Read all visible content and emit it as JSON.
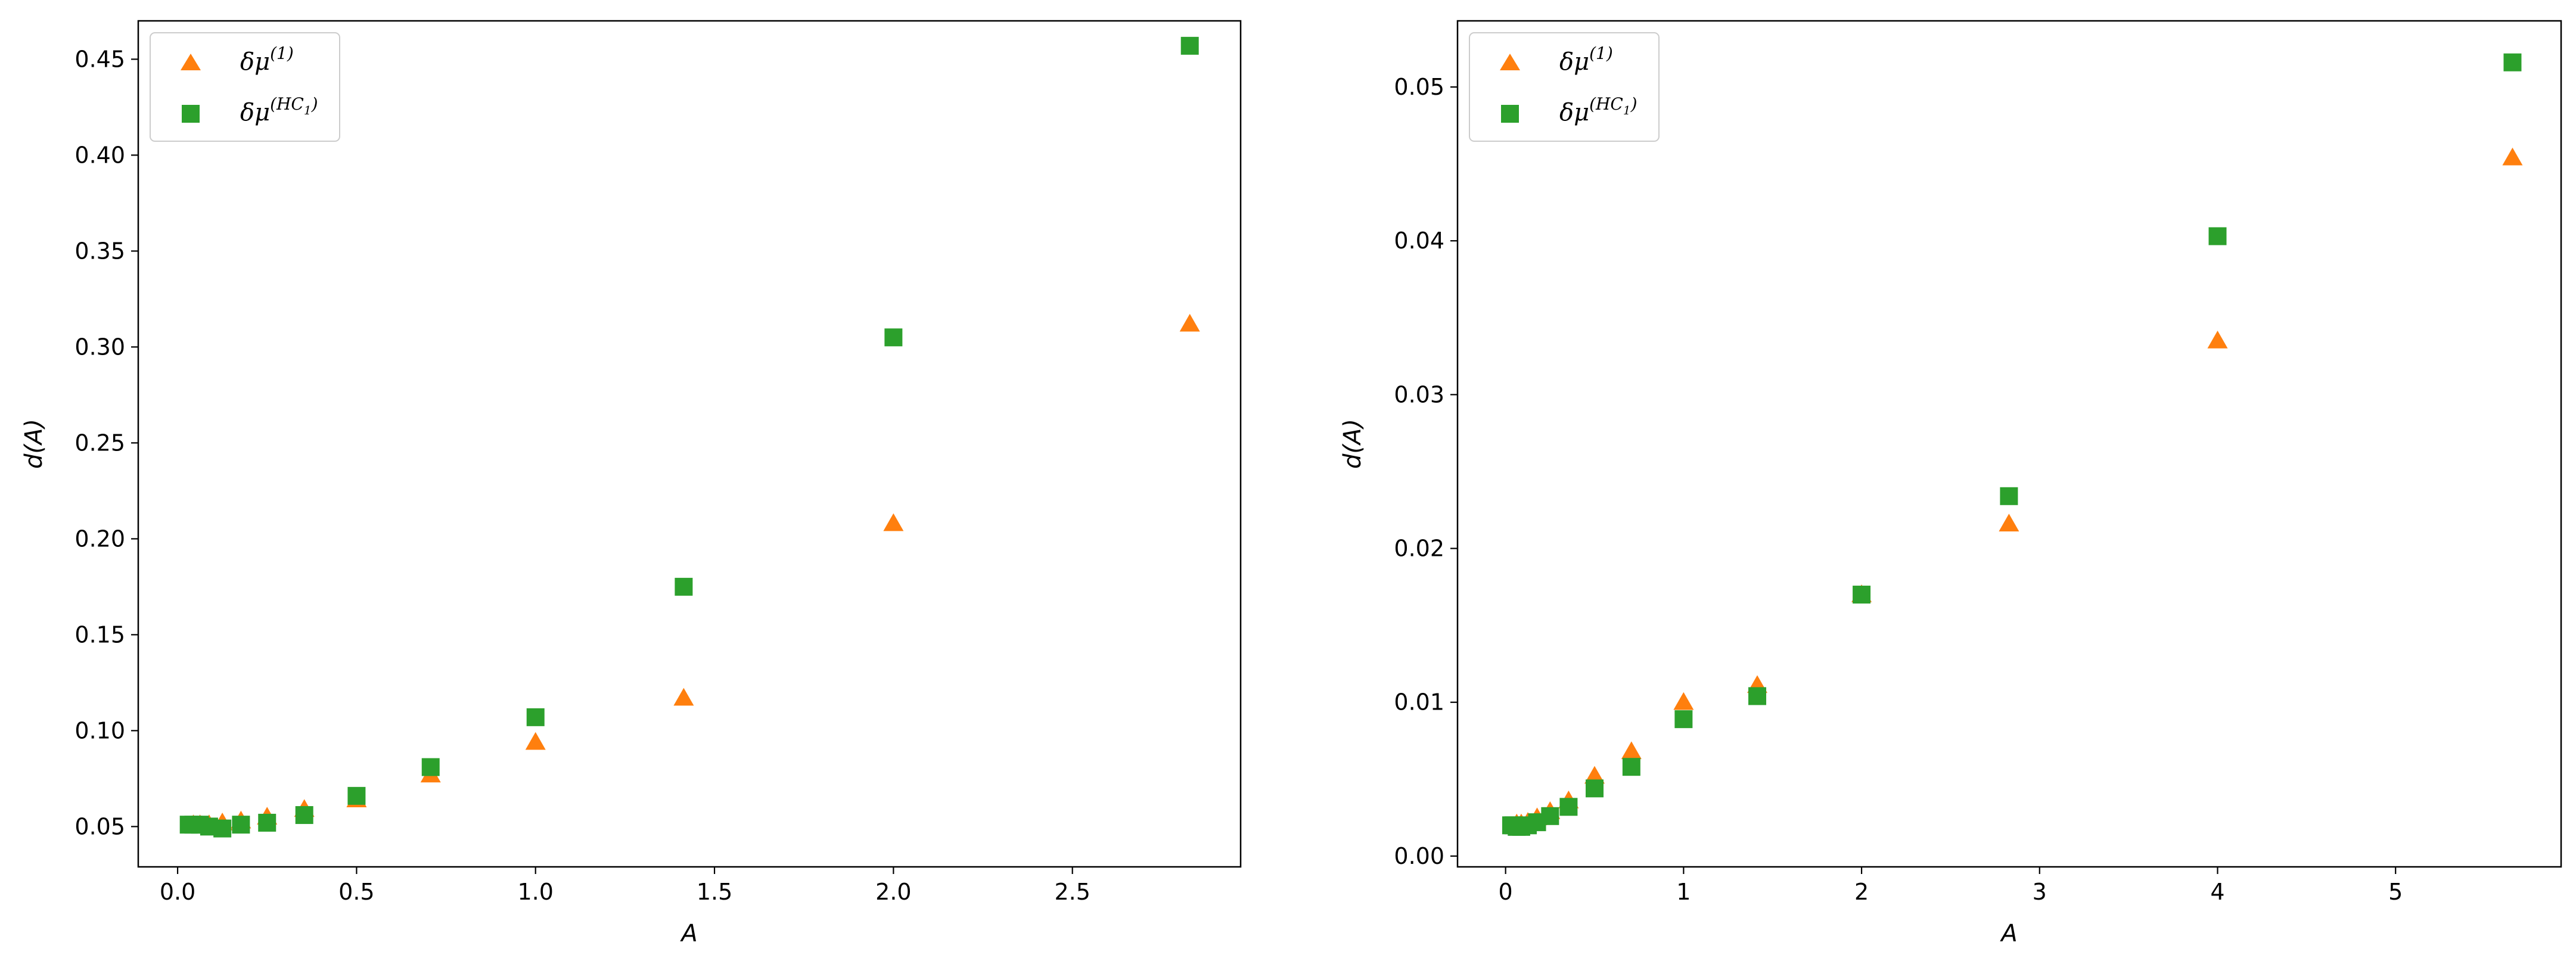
{
  "colors": {
    "series1": "#ff7f0e",
    "series2": "#2ca02c",
    "axes": "#000000",
    "legend_border": "#cccccc",
    "background": "#ffffff"
  },
  "chart_data": [
    {
      "type": "scatter",
      "xlabel": "A",
      "ylabel": "d(A)",
      "xlim": [
        -0.11,
        2.97
      ],
      "ylim": [
        0.029,
        0.47
      ],
      "xticks": [
        0.0,
        0.5,
        1.0,
        1.5,
        2.0,
        2.5
      ],
      "xtick_labels": [
        "0.0",
        "0.5",
        "1.0",
        "1.5",
        "2.0",
        "2.5"
      ],
      "yticks": [
        0.05,
        0.1,
        0.15,
        0.2,
        0.25,
        0.3,
        0.35,
        0.4,
        0.45
      ],
      "ytick_labels": [
        "0.05",
        "0.10",
        "0.15",
        "0.20",
        "0.25",
        "0.30",
        "0.35",
        "0.40",
        "0.45"
      ],
      "grid": false,
      "legend_position": "top-left",
      "series": [
        {
          "name": "δμ(1)",
          "legend_base": "δμ",
          "legend_sup": "(1)",
          "marker": "triangle",
          "color": "#ff7f0e",
          "points": [
            [
              0.044,
              0.051
            ],
            [
              0.0625,
              0.051
            ],
            [
              0.088,
              0.051
            ],
            [
              0.125,
              0.052
            ],
            [
              0.177,
              0.053
            ],
            [
              0.25,
              0.055
            ],
            [
              0.354,
              0.059
            ],
            [
              0.5,
              0.064
            ],
            [
              0.707,
              0.077
            ],
            [
              1.0,
              0.094
            ],
            [
              1.414,
              0.117
            ],
            [
              2.0,
              0.208
            ],
            [
              2.828,
              0.312
            ]
          ]
        },
        {
          "name": "δμ(HC1)",
          "legend_base": "δμ",
          "legend_sup": "(HC",
          "legend_sub": "1",
          "legend_sup_end": ")",
          "marker": "square",
          "color": "#2ca02c",
          "points": [
            [
              0.031,
              0.051
            ],
            [
              0.044,
              0.051
            ],
            [
              0.0625,
              0.051
            ],
            [
              0.088,
              0.05
            ],
            [
              0.125,
              0.049
            ],
            [
              0.177,
              0.051
            ],
            [
              0.25,
              0.052
            ],
            [
              0.354,
              0.056
            ],
            [
              0.5,
              0.066
            ],
            [
              0.707,
              0.081
            ],
            [
              1.0,
              0.107
            ],
            [
              1.414,
              0.175
            ],
            [
              2.0,
              0.305
            ],
            [
              2.828,
              0.457
            ]
          ]
        }
      ]
    },
    {
      "type": "scatter",
      "xlabel": "A",
      "ylabel": "d(A)",
      "xlim": [
        -0.27,
        5.93
      ],
      "ylim": [
        -0.0007,
        0.0543
      ],
      "xticks": [
        0,
        1,
        2,
        3,
        4,
        5
      ],
      "xtick_labels": [
        "0",
        "1",
        "2",
        "3",
        "4",
        "5"
      ],
      "yticks": [
        0.0,
        0.01,
        0.02,
        0.03,
        0.04,
        0.05
      ],
      "ytick_labels": [
        "0.00",
        "0.01",
        "0.02",
        "0.03",
        "0.04",
        "0.05"
      ],
      "grid": false,
      "legend_position": "top-left",
      "series": [
        {
          "name": "δμ(1)",
          "legend_base": "δμ",
          "legend_sup": "(1)",
          "marker": "triangle",
          "color": "#ff7f0e",
          "points": [
            [
              0.0625,
              0.0021
            ],
            [
              0.088,
              0.0021
            ],
            [
              0.125,
              0.0022
            ],
            [
              0.177,
              0.0025
            ],
            [
              0.25,
              0.0029
            ],
            [
              0.354,
              0.0036
            ],
            [
              0.5,
              0.0052
            ],
            [
              0.707,
              0.0068
            ],
            [
              1.0,
              0.01
            ],
            [
              1.414,
              0.0111
            ],
            [
              2.0,
              0.017
            ],
            [
              2.828,
              0.0216
            ],
            [
              4.0,
              0.0335
            ],
            [
              5.657,
              0.0454
            ]
          ]
        },
        {
          "name": "δμ(HC1)",
          "legend_base": "δμ",
          "legend_sup": "(HC",
          "legend_sub": "1",
          "legend_sup_end": ")",
          "marker": "square",
          "color": "#2ca02c",
          "points": [
            [
              0.031,
              0.002
            ],
            [
              0.044,
              0.002
            ],
            [
              0.0625,
              0.0019
            ],
            [
              0.088,
              0.0019
            ],
            [
              0.125,
              0.002
            ],
            [
              0.177,
              0.0022
            ],
            [
              0.25,
              0.0026
            ],
            [
              0.354,
              0.0032
            ],
            [
              0.5,
              0.0044
            ],
            [
              0.707,
              0.0058
            ],
            [
              1.0,
              0.0089
            ],
            [
              1.414,
              0.0104
            ],
            [
              2.0,
              0.017
            ],
            [
              2.828,
              0.0234
            ],
            [
              4.0,
              0.0403
            ],
            [
              5.657,
              0.0516
            ]
          ]
        }
      ]
    }
  ]
}
